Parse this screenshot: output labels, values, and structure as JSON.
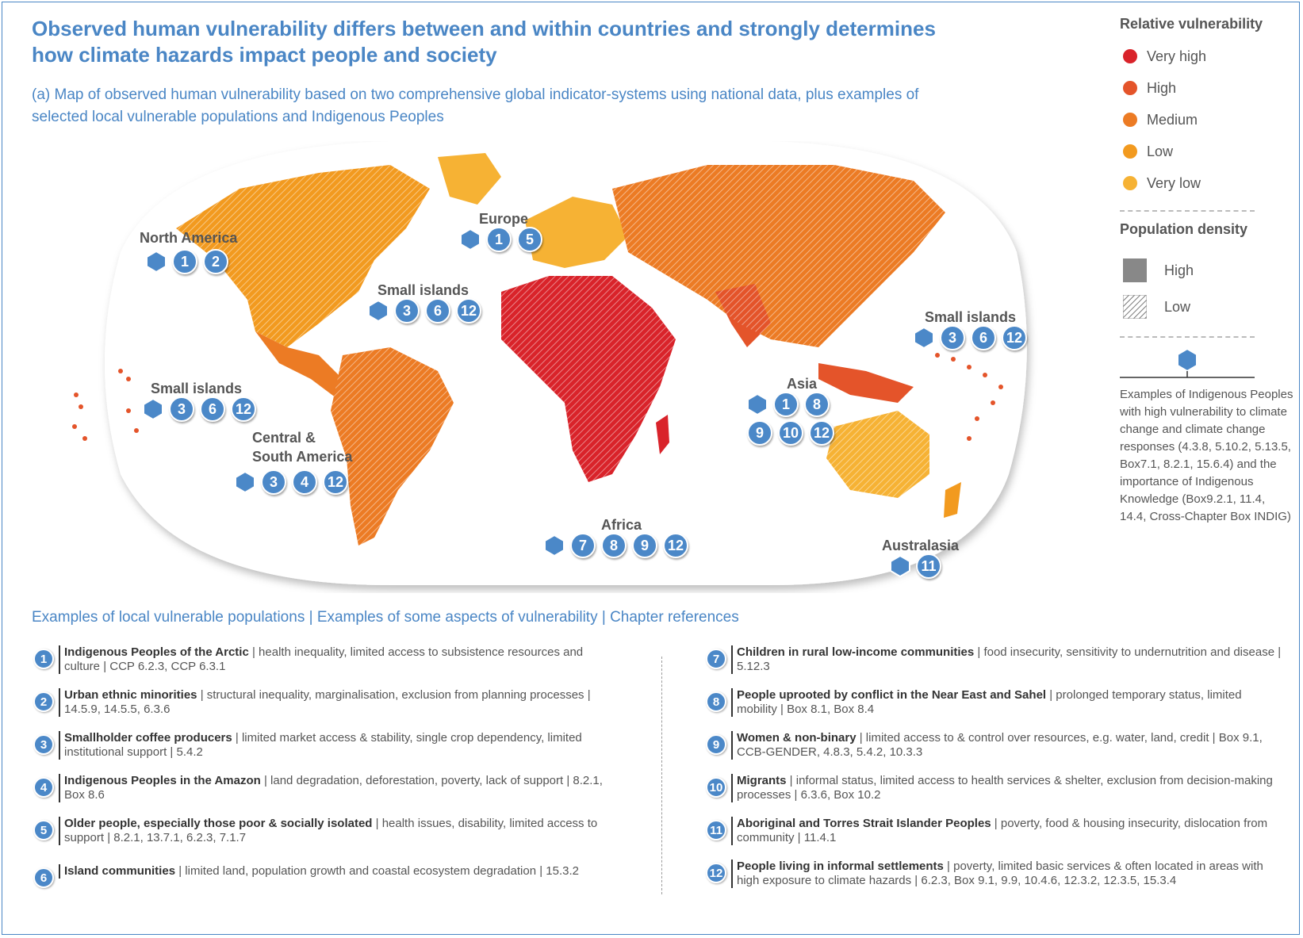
{
  "header": {
    "title_line1": "Observed human vulnerability differs between and within countries and strongly determines",
    "title_line2": "how climate hazards impact people and society",
    "subtitle_line1": "(a) Map of observed human vulnerability based on two comprehensive global indicator-systems using national data, plus examples of",
    "subtitle_line2": "selected local vulnerable populations and Indigenous Peoples"
  },
  "legend": {
    "vulnerability_title": "Relative vulnerability",
    "vulnerability_levels": [
      {
        "label": "Very high",
        "color": "#d9232a"
      },
      {
        "label": "High",
        "color": "#e4542a"
      },
      {
        "label": "Medium",
        "color": "#ec7b24"
      },
      {
        "label": "Low",
        "color": "#f29a1f"
      },
      {
        "label": "Very low",
        "color": "#f6b234"
      }
    ],
    "density_title": "Population density",
    "density_high": "High",
    "density_low": "Low",
    "indigenous_text": "Examples of Indigenous Peoples with high vulnerability to climate change and climate change responses (4.3.8, 5.10.2, 5.13.5, Box7.1, 8.2.1, 15.6.4) and the importance of Indigenous Knowledge (Box9.2.1, 11.4, 14.4, Cross-Chapter Box INDIG)"
  },
  "map": {
    "regions": [
      {
        "label": "North America",
        "numbers": [
          "1",
          "2"
        ]
      },
      {
        "label": "Europe",
        "numbers": [
          "1",
          "5"
        ]
      },
      {
        "label": "Small islands",
        "numbers": [
          "3",
          "6",
          "12"
        ]
      },
      {
        "label": "Small islands",
        "numbers": [
          "3",
          "6",
          "12"
        ]
      },
      {
        "label": "Small islands",
        "numbers": [
          "3",
          "6",
          "12"
        ]
      },
      {
        "label": "Central & South America",
        "numbers": [
          "3",
          "4",
          "12"
        ]
      },
      {
        "label": "Africa",
        "numbers": [
          "7",
          "8",
          "9",
          "12"
        ]
      },
      {
        "label": "Asia",
        "numbers": [
          "1",
          "8",
          "9",
          "10",
          "12"
        ]
      },
      {
        "label": "Australasia",
        "numbers": [
          "11"
        ]
      }
    ],
    "label_central_line1": "Central &",
    "label_central_line2": "South America"
  },
  "examples_heading": "Examples of local vulnerable populations | Examples of some aspects of vulnerability | Chapter references",
  "examples": [
    {
      "n": "1",
      "name": "Indigenous Peoples of the Arctic",
      "desc": " | health inequality, limited access to subsistence resources and culture | CCP 6.2.3, CCP 6.3.1"
    },
    {
      "n": "2",
      "name": "Urban ethnic minorities",
      "desc": " | structural inequality, marginalisation, exclusion from planning processes | 14.5.9, 14.5.5, 6.3.6"
    },
    {
      "n": "3",
      "name": "Smallholder coffee producers",
      "desc": " | limited market access & stability, single crop dependency, limited institutional support | 5.4.2"
    },
    {
      "n": "4",
      "name": "Indigenous Peoples in the Amazon",
      "desc": " | land degradation, deforestation, poverty, lack of support | 8.2.1, Box 8.6"
    },
    {
      "n": "5",
      "name": "Older people, especially those poor & socially isolated",
      "desc": " | health issues, disability, limited access to support | 8.2.1, 13.7.1, 6.2.3, 7.1.7"
    },
    {
      "n": "6",
      "name": "Island communities",
      "desc": " | limited land, population growth and coastal ecosystem degradation | 15.3.2"
    },
    {
      "n": "7",
      "name": "Children in rural low-income communities",
      "desc": " | food insecurity, sensitivity to undernutrition and disease | 5.12.3"
    },
    {
      "n": "8",
      "name": "People uprooted by conflict in the Near East and Sahel",
      "desc": " | prolonged temporary status, limited mobility | Box 8.1, Box 8.4"
    },
    {
      "n": "9",
      "name": "Women & non-binary",
      "desc": " | limited access to & control over resources, e.g. water, land, credit | Box 9.1, CCB-GENDER, 4.8.3, 5.4.2, 10.3.3"
    },
    {
      "n": "10",
      "name": "Migrants",
      "desc": " | informal status, limited access to health services & shelter, exclusion from decision-making processes | 6.3.6, Box 10.2"
    },
    {
      "n": "11",
      "name": "Aboriginal and Torres Strait Islander Peoples",
      "desc": " | poverty, food & housing insecurity, dislocation from community | 11.4.1"
    },
    {
      "n": "12",
      "name": "People living in informal settlements",
      "desc": " | poverty, limited basic services & often located in areas with high exposure to climate hazards | 6.2.3, Box 9.1, 9.9, 10.4.6, 12.3.2, 12.3.5, 15.3.4"
    }
  ]
}
